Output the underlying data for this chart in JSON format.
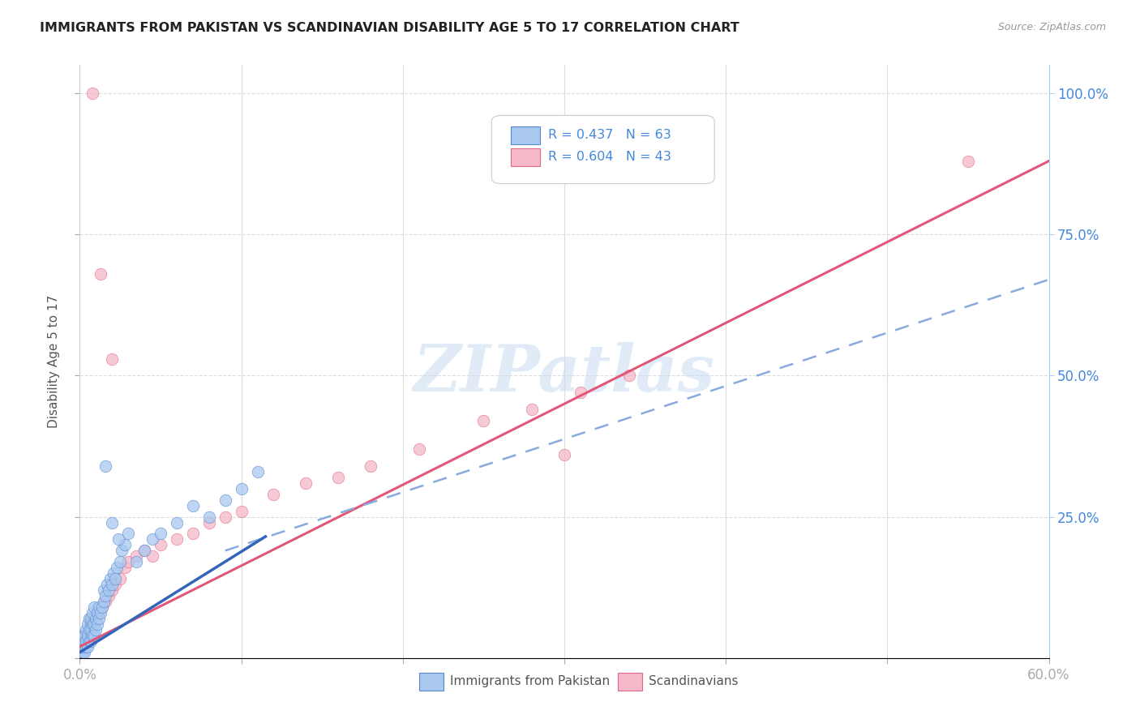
{
  "title": "IMMIGRANTS FROM PAKISTAN VS SCANDINAVIAN DISABILITY AGE 5 TO 17 CORRELATION CHART",
  "source": "Source: ZipAtlas.com",
  "ylabel": "Disability Age 5 to 17",
  "xlim": [
    0.0,
    0.6
  ],
  "ylim": [
    0.0,
    1.05
  ],
  "ytick_right": [
    0.25,
    0.5,
    0.75,
    1.0
  ],
  "ytick_right_labels": [
    "25.0%",
    "50.0%",
    "75.0%",
    "100.0%"
  ],
  "blue_color": "#a8c8f0",
  "pink_color": "#f5b8c8",
  "blue_edge_color": "#5588cc",
  "pink_edge_color": "#e06888",
  "blue_line_color": "#3366bb",
  "pink_line_color": "#e05878",
  "blue_dash_color": "#88aadd",
  "legend_R1": "R = 0.437",
  "legend_N1": "N = 63",
  "legend_R2": "R = 0.604",
  "legend_N2": "N = 43",
  "legend_label1": "Immigrants from Pakistan",
  "legend_label2": "Scandinavians",
  "watermark": "ZIPatlas",
  "background_color": "#ffffff",
  "grid_color": "#e0e0e0",
  "title_color": "#333333",
  "right_axis_color": "#4488dd",
  "pakistan_scatter_x": [
    0.001,
    0.001,
    0.002,
    0.002,
    0.002,
    0.002,
    0.003,
    0.003,
    0.003,
    0.003,
    0.004,
    0.004,
    0.004,
    0.005,
    0.005,
    0.005,
    0.006,
    0.006,
    0.006,
    0.007,
    0.007,
    0.007,
    0.008,
    0.008,
    0.008,
    0.009,
    0.009,
    0.009,
    0.01,
    0.01,
    0.011,
    0.011,
    0.012,
    0.012,
    0.013,
    0.014,
    0.015,
    0.015,
    0.016,
    0.017,
    0.018,
    0.019,
    0.02,
    0.021,
    0.022,
    0.023,
    0.025,
    0.026,
    0.028,
    0.03,
    0.035,
    0.04,
    0.045,
    0.05,
    0.06,
    0.07,
    0.08,
    0.09,
    0.1,
    0.11,
    0.016,
    0.02,
    0.024
  ],
  "pakistan_scatter_y": [
    0.01,
    0.02,
    0.01,
    0.02,
    0.03,
    0.04,
    0.01,
    0.02,
    0.03,
    0.04,
    0.02,
    0.03,
    0.05,
    0.02,
    0.04,
    0.06,
    0.03,
    0.05,
    0.07,
    0.03,
    0.05,
    0.07,
    0.04,
    0.06,
    0.08,
    0.04,
    0.06,
    0.09,
    0.05,
    0.07,
    0.06,
    0.08,
    0.07,
    0.09,
    0.08,
    0.09,
    0.1,
    0.12,
    0.11,
    0.13,
    0.12,
    0.14,
    0.13,
    0.15,
    0.14,
    0.16,
    0.17,
    0.19,
    0.2,
    0.22,
    0.17,
    0.19,
    0.21,
    0.22,
    0.24,
    0.27,
    0.25,
    0.28,
    0.3,
    0.33,
    0.34,
    0.24,
    0.21
  ],
  "scandinavian_scatter_x": [
    0.001,
    0.002,
    0.003,
    0.003,
    0.004,
    0.005,
    0.006,
    0.007,
    0.008,
    0.009,
    0.01,
    0.012,
    0.014,
    0.016,
    0.018,
    0.02,
    0.022,
    0.025,
    0.028,
    0.03,
    0.035,
    0.04,
    0.045,
    0.05,
    0.06,
    0.07,
    0.08,
    0.09,
    0.1,
    0.12,
    0.14,
    0.16,
    0.18,
    0.21,
    0.25,
    0.28,
    0.31,
    0.34,
    0.013,
    0.02,
    0.008,
    0.55,
    0.3
  ],
  "scandinavian_scatter_y": [
    0.01,
    0.02,
    0.03,
    0.04,
    0.03,
    0.04,
    0.05,
    0.06,
    0.05,
    0.07,
    0.07,
    0.08,
    0.09,
    0.1,
    0.11,
    0.12,
    0.13,
    0.14,
    0.16,
    0.17,
    0.18,
    0.19,
    0.18,
    0.2,
    0.21,
    0.22,
    0.24,
    0.25,
    0.26,
    0.29,
    0.31,
    0.32,
    0.34,
    0.37,
    0.42,
    0.44,
    0.47,
    0.5,
    0.68,
    0.53,
    1.0,
    0.88,
    0.36
  ],
  "blue_solid_trend_x": [
    0.0,
    0.115
  ],
  "blue_solid_trend_y": [
    0.01,
    0.215
  ],
  "blue_dash_trend_x": [
    0.09,
    0.6
  ],
  "blue_dash_trend_y": [
    0.19,
    0.67
  ],
  "pink_trend_x": [
    0.0,
    0.6
  ],
  "pink_trend_y": [
    0.02,
    0.88
  ]
}
